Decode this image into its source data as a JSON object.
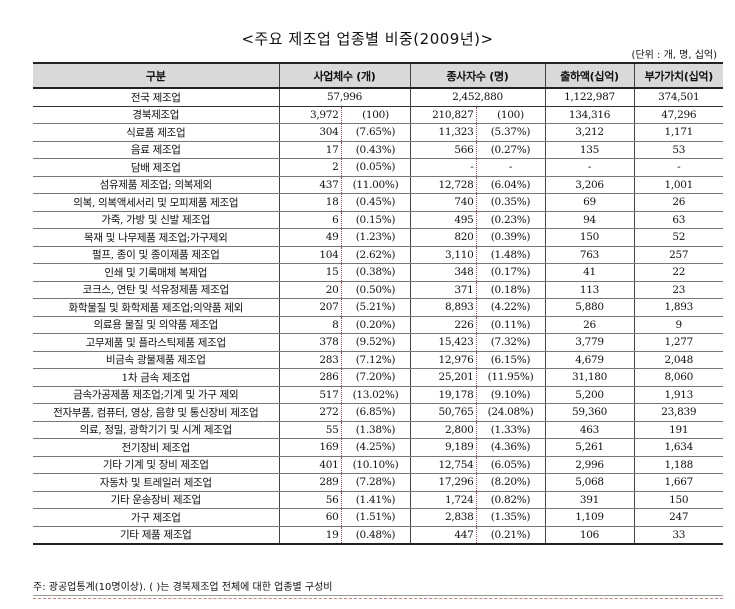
{
  "title": "<주요 제조업 업종별 비중(2009년)>",
  "unit": "(단위 : 개, 명, 십억)",
  "headers": {
    "category": "구분",
    "establishments": "사업체수 (개)",
    "employees": "종사자수 (명)",
    "shipments": "출하액(십억)",
    "value_added": "부가가치(십억)"
  },
  "total": {
    "name": "전국 제조업",
    "establishments": "57,996",
    "employees": "2,452,880",
    "shipments": "1,122,987",
    "value_added": "374,501"
  },
  "rows": [
    {
      "name": "경북제조업",
      "est": "3,972",
      "est_pct": "(100)",
      "emp": "210,827",
      "emp_pct": "(100)",
      "ship": "134,316",
      "va": "47,296"
    },
    {
      "name": "식료품 제조업",
      "est": "304",
      "est_pct": "(7.65%)",
      "emp": "11,323",
      "emp_pct": "(5.37%)",
      "ship": "3,212",
      "va": "1,171"
    },
    {
      "name": "음료 제조업",
      "est": "17",
      "est_pct": "(0.43%)",
      "emp": "566",
      "emp_pct": "(0.27%)",
      "ship": "135",
      "va": "53"
    },
    {
      "name": "담배 제조업",
      "est": "2",
      "est_pct": "(0.05%)",
      "emp": "-",
      "emp_pct": "-",
      "ship": "-",
      "va": "-"
    },
    {
      "name": "섬유제품 제조업; 의복제외",
      "est": "437",
      "est_pct": "(11.00%)",
      "emp": "12,728",
      "emp_pct": "(6.04%)",
      "ship": "3,206",
      "va": "1,001"
    },
    {
      "name": "의복, 의복액세서리 및 모피제품 제조업",
      "est": "18",
      "est_pct": "(0.45%)",
      "emp": "740",
      "emp_pct": "(0.35%)",
      "ship": "69",
      "va": "26"
    },
    {
      "name": "가죽, 가방 및 신발 제조업",
      "est": "6",
      "est_pct": "(0.15%)",
      "emp": "495",
      "emp_pct": "(0.23%)",
      "ship": "94",
      "va": "63"
    },
    {
      "name": "목재 및 나무제품 제조업;가구제외",
      "est": "49",
      "est_pct": "(1.23%)",
      "emp": "820",
      "emp_pct": "(0.39%)",
      "ship": "150",
      "va": "52"
    },
    {
      "name": "펄프, 종이 및 종이제품 제조업",
      "est": "104",
      "est_pct": "(2.62%)",
      "emp": "3,110",
      "emp_pct": "(1.48%)",
      "ship": "763",
      "va": "257"
    },
    {
      "name": "인쇄 및 기록매체 복제업",
      "est": "15",
      "est_pct": "(0.38%)",
      "emp": "348",
      "emp_pct": "(0.17%)",
      "ship": "41",
      "va": "22"
    },
    {
      "name": "코크스, 연탄 및 석유정제품 제조업",
      "est": "20",
      "est_pct": "(0.50%)",
      "emp": "371",
      "emp_pct": "(0.18%)",
      "ship": "113",
      "va": "23"
    },
    {
      "name": "화학물질 및 화학제품 제조업;의약품 제외",
      "est": "207",
      "est_pct": "(5.21%)",
      "emp": "8,893",
      "emp_pct": "(4.22%)",
      "ship": "5,880",
      "va": "1,893"
    },
    {
      "name": "의료용 물질 및 의약품 제조업",
      "est": "8",
      "est_pct": "(0.20%)",
      "emp": "226",
      "emp_pct": "(0.11%)",
      "ship": "26",
      "va": "9"
    },
    {
      "name": "고무제품 및 플라스틱제품 제조업",
      "est": "378",
      "est_pct": "(9.52%)",
      "emp": "15,423",
      "emp_pct": "(7.32%)",
      "ship": "3,779",
      "va": "1,277"
    },
    {
      "name": "비금속 광물제품 제조업",
      "est": "283",
      "est_pct": "(7.12%)",
      "emp": "12,976",
      "emp_pct": "(6.15%)",
      "ship": "4,679",
      "va": "2,048"
    },
    {
      "name": "1차 금속 제조업",
      "est": "286",
      "est_pct": "(7.20%)",
      "emp": "25,201",
      "emp_pct": "(11.95%)",
      "ship": "31,180",
      "va": "8,060"
    },
    {
      "name": "금속가공제품 제조업;기계 및 가구 제외",
      "est": "517",
      "est_pct": "(13.02%)",
      "emp": "19,178",
      "emp_pct": "(9.10%)",
      "ship": "5,200",
      "va": "1,913"
    },
    {
      "name": "전자부품, 컴퓨터, 영상, 음향 및 통신장비 제조업",
      "est": "272",
      "est_pct": "(6.85%)",
      "emp": "50,765",
      "emp_pct": "(24.08%)",
      "ship": "59,360",
      "va": "23,839"
    },
    {
      "name": "의료, 정밀, 광학기기 및 시계 제조업",
      "est": "55",
      "est_pct": "(1.38%)",
      "emp": "2,800",
      "emp_pct": "(1.33%)",
      "ship": "463",
      "va": "191"
    },
    {
      "name": "전기장비 제조업",
      "est": "169",
      "est_pct": "(4.25%)",
      "emp": "9,189",
      "emp_pct": "(4.36%)",
      "ship": "5,261",
      "va": "1,634"
    },
    {
      "name": "기타 기계 및 장비 제조업",
      "est": "401",
      "est_pct": "(10.10%)",
      "emp": "12,754",
      "emp_pct": "(6.05%)",
      "ship": "2,996",
      "va": "1,188"
    },
    {
      "name": "자동차 및 트레일러 제조업",
      "est": "289",
      "est_pct": "(7.28%)",
      "emp": "17,296",
      "emp_pct": "(8.20%)",
      "ship": "5,068",
      "va": "1,667"
    },
    {
      "name": "기타 운송장비 제조업",
      "est": "56",
      "est_pct": "(1.41%)",
      "emp": "1,724",
      "emp_pct": "(0.82%)",
      "ship": "391",
      "va": "150"
    },
    {
      "name": "가구 제조업",
      "est": "60",
      "est_pct": "(1.51%)",
      "emp": "2,838",
      "emp_pct": "(1.35%)",
      "ship": "1,109",
      "va": "247"
    },
    {
      "name": "기타 제품 제조업",
      "est": "19",
      "est_pct": "(0.48%)",
      "emp": "447",
      "emp_pct": "(0.21%)",
      "ship": "106",
      "va": "33"
    }
  ],
  "note": "주: 광공업통계(10명이상). ( )는 경북제조업 전체에 대한 업종별 구성비"
}
